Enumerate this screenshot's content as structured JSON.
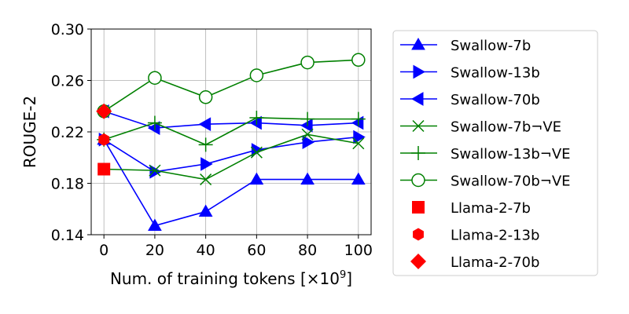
{
  "chart_data": {
    "type": "line",
    "xlabel": "Num. of training tokens [×10",
    "xlabel_sup": "9",
    "xlabel_close": "]",
    "ylabel": "ROUGE-2",
    "xlim": [
      -5,
      105
    ],
    "ylim": [
      0.14,
      0.3
    ],
    "x_ticks": [
      0,
      20,
      40,
      60,
      80,
      100
    ],
    "x_tick_labels": [
      "0",
      "20",
      "40",
      "60",
      "80",
      "100"
    ],
    "y_ticks": [
      0.14,
      0.18,
      0.22,
      0.26,
      0.3
    ],
    "y_tick_labels": [
      "0.14",
      "0.18",
      "0.22",
      "0.26",
      "0.30"
    ],
    "grid": true,
    "legend_position": "right, outside plot",
    "x": [
      0,
      20,
      40,
      60,
      80,
      100
    ],
    "series": [
      {
        "name": "Swallow-7b",
        "color": "#0000ff",
        "marker": "triangle-up",
        "values": [
          0.214,
          0.147,
          0.158,
          0.183,
          0.183,
          0.183
        ]
      },
      {
        "name": "Swallow-13b",
        "color": "#0000ff",
        "marker": "triangle-right",
        "values": [
          0.214,
          0.189,
          0.195,
          0.206,
          0.212,
          0.216
        ]
      },
      {
        "name": "Swallow-70b",
        "color": "#0000ff",
        "marker": "triangle-left",
        "values": [
          0.236,
          0.223,
          0.226,
          0.227,
          0.225,
          0.227
        ]
      },
      {
        "name": "Swallow-7b¬VE",
        "color": "#008000",
        "marker": "x",
        "values": [
          0.191,
          0.19,
          0.183,
          0.204,
          0.218,
          0.211
        ]
      },
      {
        "name": "Swallow-13b¬VE",
        "color": "#008000",
        "marker": "plus",
        "values": [
          0.214,
          0.227,
          0.21,
          0.231,
          0.23,
          0.23
        ]
      },
      {
        "name": "Swallow-70b¬VE",
        "color": "#008000",
        "marker": "circle-open",
        "values": [
          0.236,
          0.262,
          0.247,
          0.264,
          0.274,
          0.276
        ]
      }
    ],
    "baselines": [
      {
        "name": "Llama-2-7b",
        "color": "#ff0000",
        "marker": "square",
        "x": 0,
        "y": 0.191
      },
      {
        "name": "Llama-2-13b",
        "color": "#ff0000",
        "marker": "hexagon",
        "x": 0,
        "y": 0.214
      },
      {
        "name": "Llama-2-70b",
        "color": "#ff0000",
        "marker": "diamond",
        "x": 0,
        "y": 0.236
      }
    ]
  }
}
